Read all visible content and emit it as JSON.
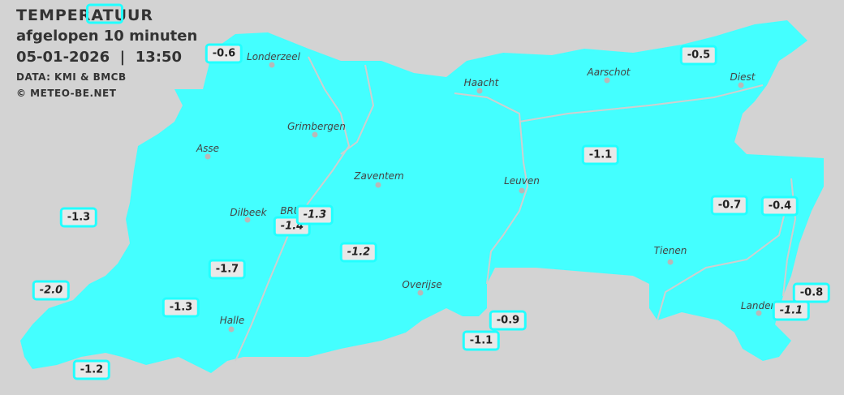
{
  "header": {
    "title": "TEMPERATUUR",
    "subtitle": "afgelopen 10 minuten",
    "datetime": "05-01-2026  |  13:50",
    "source": "DATA: KMI & BMCB",
    "copyright": "© METEO-BE.NET"
  },
  "colors": {
    "map_fill": "#44ffff",
    "background": "#d3d3d3",
    "label_border": "#22ffff",
    "label_bg": "#e8e8e8"
  },
  "cities": [
    {
      "name": "Londerzeel"
    },
    {
      "name": "Haacht"
    },
    {
      "name": "Aarschot"
    },
    {
      "name": "Diest"
    },
    {
      "name": "Grimbergen"
    },
    {
      "name": "Asse"
    },
    {
      "name": "Zaventem"
    },
    {
      "name": "Leuven"
    },
    {
      "name": "Dilbeek"
    },
    {
      "name": "BRU"
    },
    {
      "name": "Tienen"
    },
    {
      "name": "Overijse"
    },
    {
      "name": "Halle"
    },
    {
      "name": "Landen"
    }
  ],
  "temperatures": [
    {
      "value": "-0.6"
    },
    {
      "value": "-0.5"
    },
    {
      "value": "-1.1"
    },
    {
      "value": "-1.3"
    },
    {
      "value": "-1.4"
    },
    {
      "value": "-1.3"
    },
    {
      "value": "-1.2"
    },
    {
      "value": "-0.7"
    },
    {
      "value": "-0.4"
    },
    {
      "value": "-1.7"
    },
    {
      "value": "-2.0"
    },
    {
      "value": "-1.3"
    },
    {
      "value": "-0.9"
    },
    {
      "value": "-1.1"
    },
    {
      "value": "-0.8"
    },
    {
      "value": "-1.1"
    },
    {
      "value": "-1.2"
    }
  ]
}
